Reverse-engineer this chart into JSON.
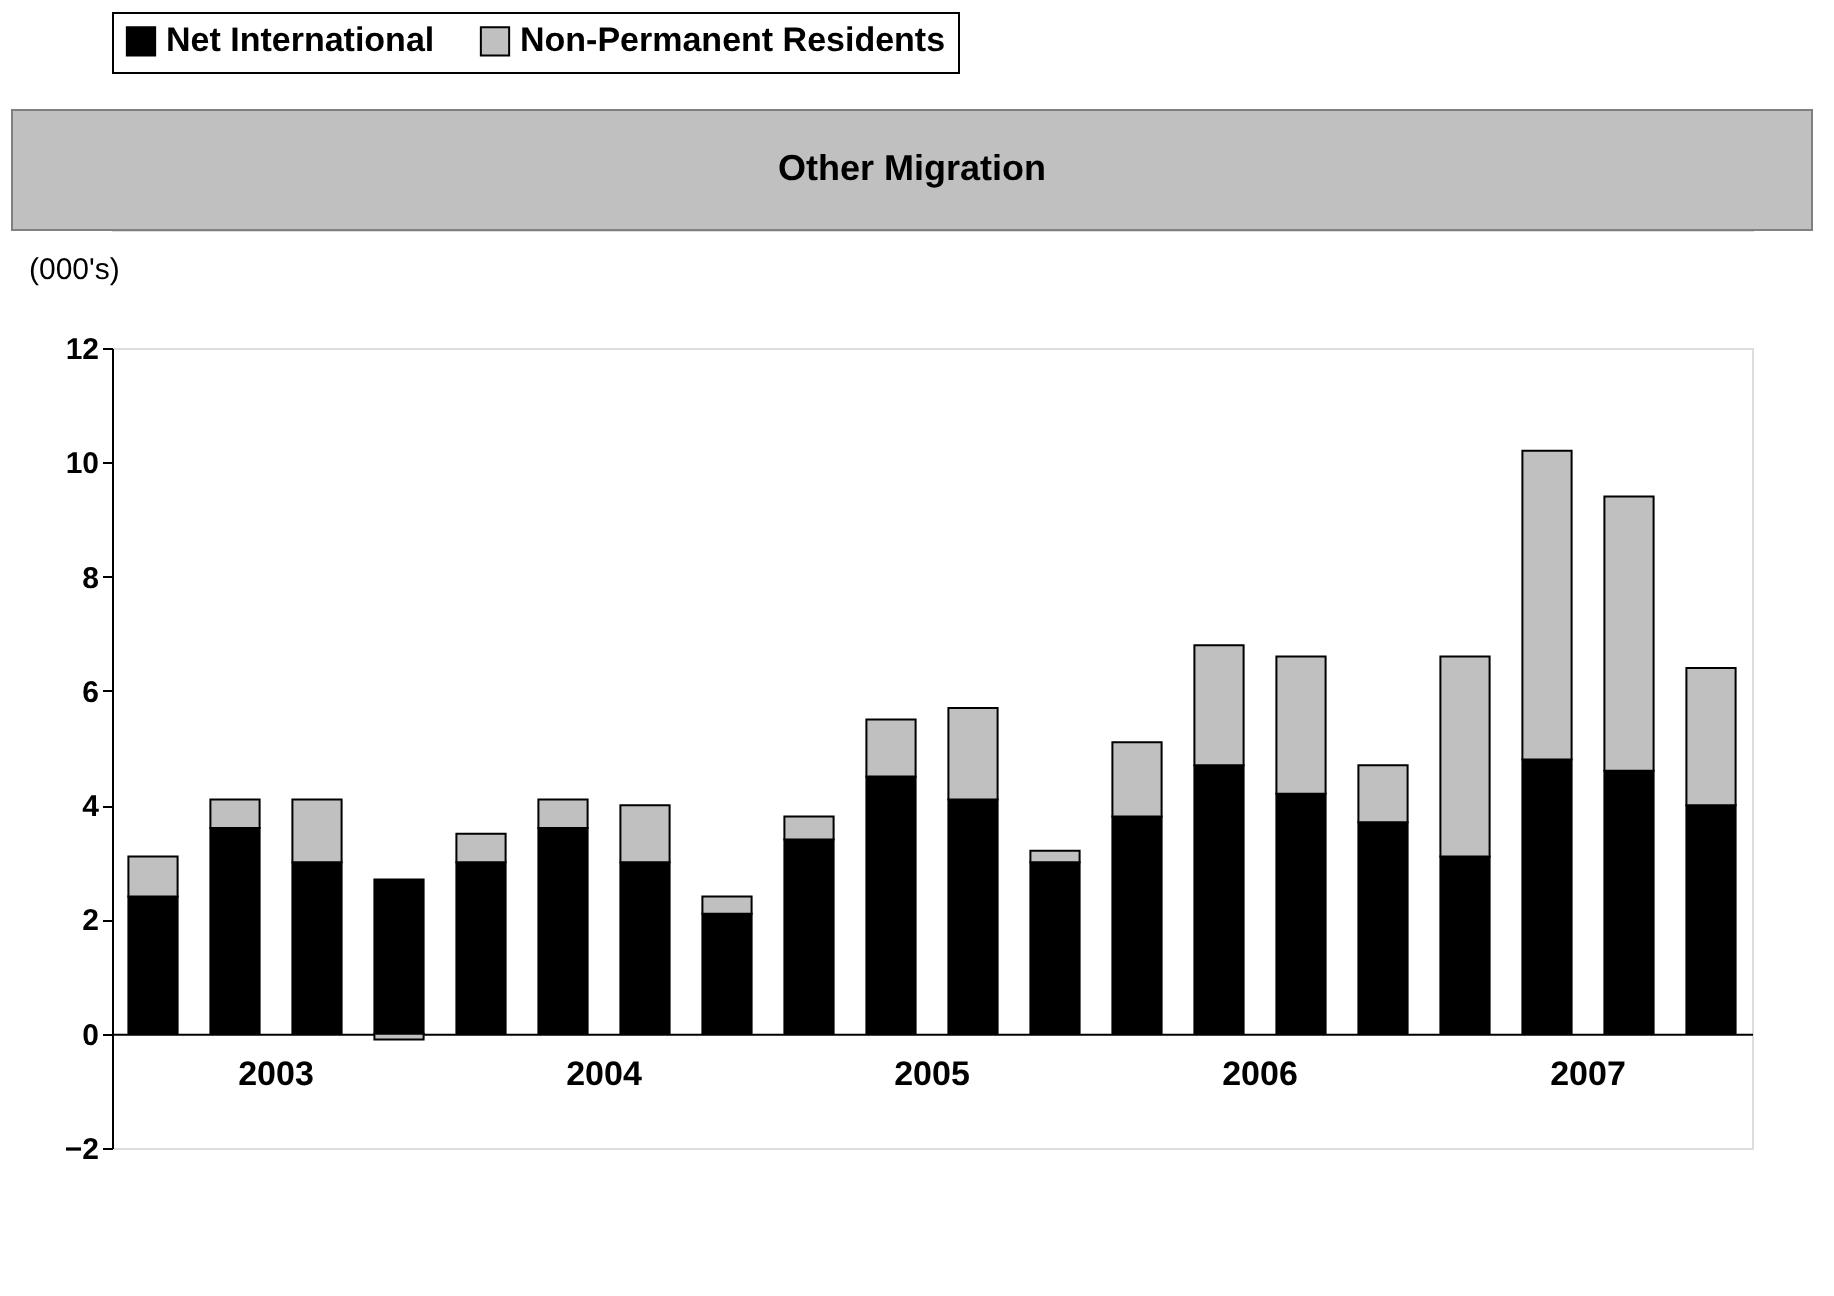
{
  "chart_data": {
    "type": "bar",
    "title": "Other Migration",
    "ylabel": "(000's)",
    "categories": [
      null,
      "2003",
      null,
      null,
      null,
      "2004",
      null,
      null,
      null,
      "2005",
      null,
      null,
      null,
      "2006",
      null,
      null,
      null,
      "2007",
      null,
      null
    ],
    "series": [
      {
        "name": "Net International",
        "color": "#000000",
        "values": [
          2.4,
          3.6,
          3.0,
          2.7,
          3.0,
          3.6,
          3.0,
          2.1,
          3.4,
          4.5,
          4.1,
          3.0,
          3.8,
          4.7,
          4.2,
          3.7,
          3.1,
          4.8,
          4.6,
          4.0
        ]
      },
      {
        "name": "Non-Permanent Residents",
        "color": "#c0c0c0",
        "values": [
          0.7,
          0.5,
          1.1,
          -0.1,
          0.5,
          0.5,
          1.0,
          0.3,
          0.4,
          1.0,
          1.6,
          0.2,
          1.3,
          2.1,
          2.4,
          1.0,
          3.5,
          5.4,
          4.8,
          2.4
        ]
      }
    ],
    "stacked": true,
    "ylim": [
      -2,
      12
    ],
    "yticks": [
      -2,
      0,
      2,
      4,
      6,
      8,
      10,
      12
    ],
    "grid": false,
    "legend": "top"
  }
}
